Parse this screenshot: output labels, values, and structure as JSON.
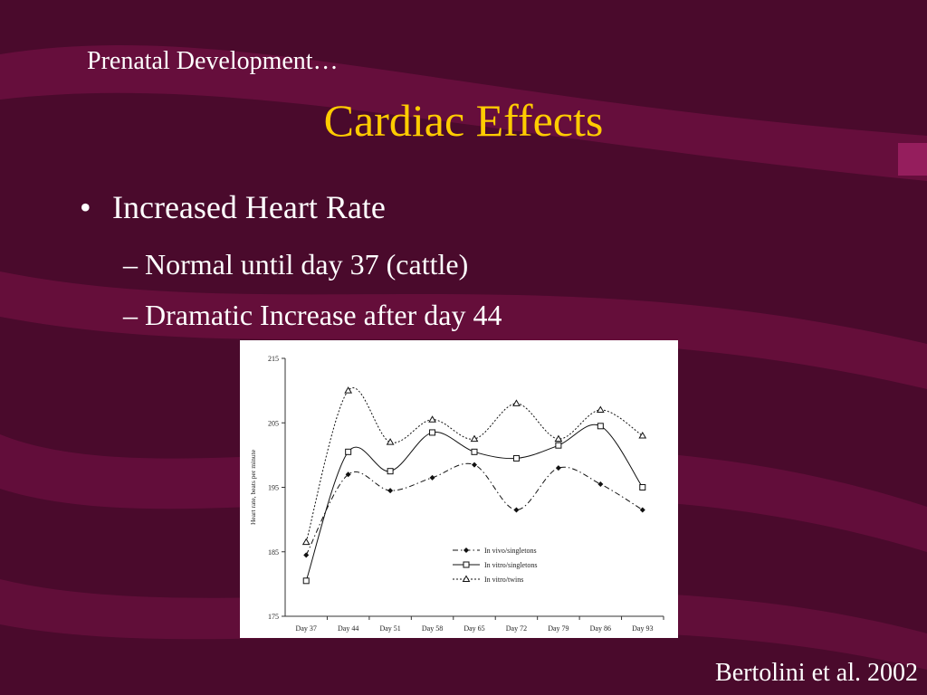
{
  "slide": {
    "supertitle": "Prenatal Development…",
    "title": "Cardiac Effects",
    "bullet": "Increased Heart Rate",
    "subbullets": [
      "Normal until day 37 (cattle)",
      "Dramatic Increase after day 44"
    ],
    "citation": "Bertolini et al. 2002",
    "bullet_marker": "•",
    "sub_marker": "–"
  },
  "colors": {
    "background": "#4a0a2c",
    "swoosh": "#6b0f3f",
    "title": "#ffcc00",
    "text": "#ffffff"
  },
  "chart_data": {
    "type": "line",
    "ylabel": "Heart rate, beats per minute",
    "xlabel": "",
    "categories": [
      "Day 37",
      "Day 44",
      "Day 51",
      "Day 58",
      "Day 65",
      "Day 72",
      "Day 79",
      "Day 86",
      "Day 93"
    ],
    "ylim": [
      175,
      215
    ],
    "yticks": [
      175,
      185,
      195,
      205,
      215
    ],
    "legend_position": "lower-right",
    "grid": false,
    "series": [
      {
        "name": "In vivo/singletons",
        "marker": "diamond",
        "dash": "dash-dot",
        "values": [
          184.5,
          197,
          194.5,
          196.5,
          198.5,
          191.5,
          198,
          195.5,
          191.5
        ]
      },
      {
        "name": "In vitro/singletons",
        "marker": "square",
        "dash": "solid",
        "values": [
          180.5,
          200.5,
          197.5,
          203.5,
          200.5,
          199.5,
          201.5,
          204.5,
          195
        ]
      },
      {
        "name": "In vitro/twins",
        "marker": "triangle",
        "dash": "dotted",
        "values": [
          186.5,
          210,
          202,
          205.5,
          202.5,
          208,
          202.5,
          207,
          203
        ]
      }
    ]
  }
}
